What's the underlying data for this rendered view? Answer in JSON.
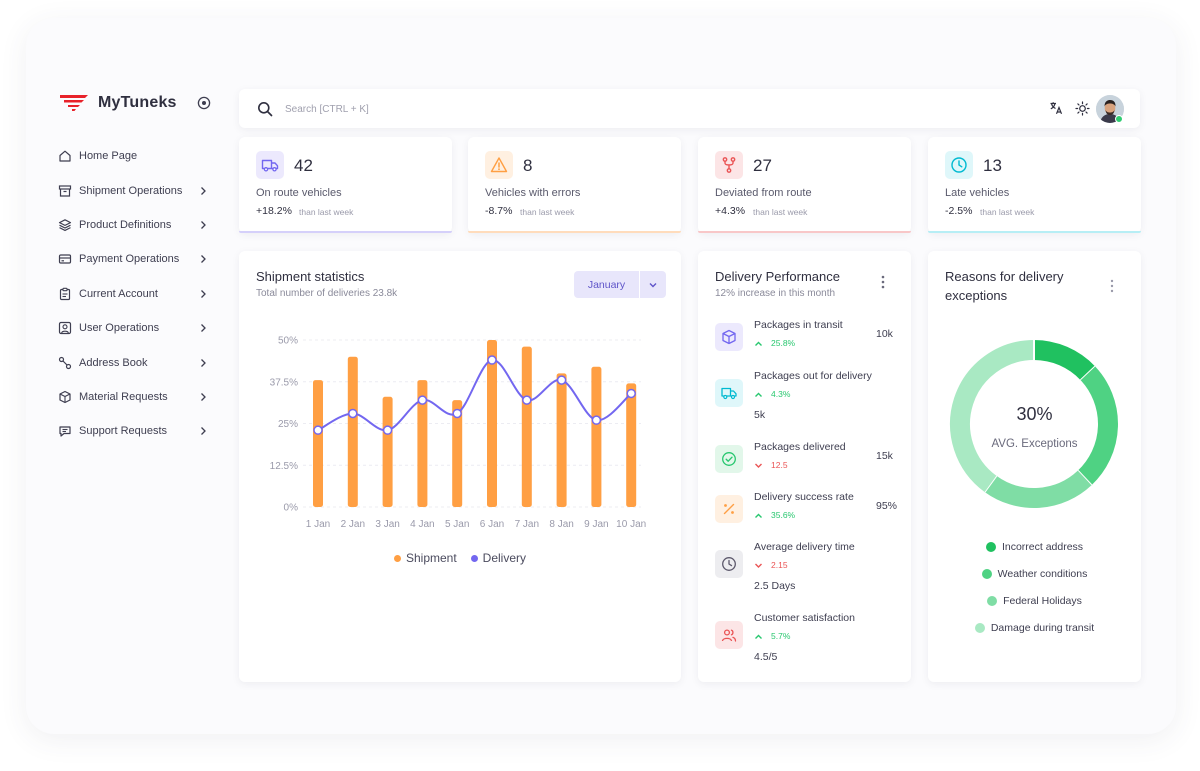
{
  "brand": {
    "name": "MyTuneks"
  },
  "sidebar": {
    "items": [
      {
        "label": "Home Page",
        "icon": "home-icon",
        "chevron": false
      },
      {
        "label": "Shipment Operations",
        "icon": "archive-box-icon",
        "chevron": true
      },
      {
        "label": "Product Definitions",
        "icon": "layers-icon",
        "chevron": true
      },
      {
        "label": "Payment Operations",
        "icon": "credit-card-icon",
        "chevron": true
      },
      {
        "label": "Current Account",
        "icon": "clipboard-icon",
        "chevron": true
      },
      {
        "label": "User Operations",
        "icon": "user-square-icon",
        "chevron": true
      },
      {
        "label": "Address Book",
        "icon": "route-icon",
        "chevron": true
      },
      {
        "label": "Material Requests",
        "icon": "package-icon",
        "chevron": true
      },
      {
        "label": "Support Requests",
        "icon": "chat-bubble-icon",
        "chevron": true
      }
    ]
  },
  "search": {
    "placeholder": "Search [CTRL + K]"
  },
  "stats": [
    {
      "value": "42",
      "label": "On route vehicles",
      "change": "+18.2%",
      "compare": "than last week",
      "color": "#7367f0"
    },
    {
      "value": "8",
      "label": "Vehicles with errors",
      "change": "-8.7%",
      "compare": "than last week",
      "color": "#ff9f43"
    },
    {
      "value": "27",
      "label": "Deviated from route",
      "change": "+4.3%",
      "compare": "than last week",
      "color": "#ea5455"
    },
    {
      "value": "13",
      "label": "Late vehicles",
      "change": "-2.5%",
      "compare": "than last week",
      "color": "#00bad1"
    }
  ],
  "shipment": {
    "title": "Shipment statistics",
    "subtitle": "Total number of deliveries 23.8k",
    "month": "January"
  },
  "chart_data": {
    "type": "bar",
    "categories": [
      "1 Jan",
      "2 Jan",
      "3 Jan",
      "4 Jan",
      "5 Jan",
      "6 Jan",
      "7 Jan",
      "8 Jan",
      "9 Jan",
      "10 Jan"
    ],
    "series": [
      {
        "name": "Shipment",
        "type": "bar",
        "color": "#ff9f43",
        "values": [
          38,
          45,
          33,
          38,
          32,
          50,
          48,
          40,
          42,
          37
        ]
      },
      {
        "name": "Delivery",
        "type": "line",
        "color": "#7367f0",
        "values": [
          23,
          28,
          23,
          32,
          28,
          44,
          32,
          38,
          26,
          34
        ]
      }
    ],
    "yticks": [
      "0%",
      "12.5%",
      "25%",
      "37.5%",
      "50%"
    ],
    "ylim": [
      0,
      50
    ],
    "grid": true,
    "legend": "bottom-center"
  },
  "performance": {
    "title": "Delivery Performance",
    "subtitle": "12% increase in this month",
    "items": [
      {
        "label": "Packages in transit",
        "change": "25.8%",
        "direction": "up",
        "value": "10k",
        "value_inline": true,
        "icon": "cube-icon",
        "color": "#7367f0",
        "bg": "#ece9fd"
      },
      {
        "label": "Packages out for delivery",
        "change": "4.3%",
        "direction": "up",
        "value": "5k",
        "value_inline": false,
        "icon": "truck-icon",
        "color": "#00bad1",
        "bg": "#dff7fa"
      },
      {
        "label": "Packages delivered",
        "change": "12.5",
        "direction": "down",
        "value": "15k",
        "value_inline": true,
        "icon": "check-circle-icon",
        "color": "#28c76f",
        "bg": "#e2f7ea"
      },
      {
        "label": "Delivery success rate",
        "change": "35.6%",
        "direction": "up",
        "value": "95%",
        "value_inline": true,
        "icon": "percent-icon",
        "color": "#ff9f43",
        "bg": "#fff0e1"
      },
      {
        "label": "Average delivery time",
        "change": "2.15",
        "direction": "down",
        "value": "2.5 Days",
        "value_inline": false,
        "icon": "clock-icon",
        "color": "#5d596c",
        "bg": "#ededf0"
      },
      {
        "label": "Customer satisfaction",
        "change": "5.7%",
        "direction": "up",
        "value": "4.5/5",
        "value_inline": false,
        "icon": "users-icon",
        "color": "#ea5455",
        "bg": "#fce5e6"
      }
    ]
  },
  "exceptions": {
    "title_line1": "Reasons for delivery",
    "title_line2": "exceptions",
    "center_value": "30%",
    "center_label": "AVG. Exceptions",
    "segments": [
      {
        "label": "Incorrect address",
        "value": 13,
        "color": "#20c160"
      },
      {
        "label": "Weather conditions",
        "value": 25,
        "color": "#4fd283"
      },
      {
        "label": "Federal Holidays",
        "value": 22,
        "color": "#7fdda5"
      },
      {
        "label": "Damage during transit",
        "value": 40,
        "color": "#a9e9c3"
      }
    ]
  },
  "colors": {
    "accent": "#7367f0",
    "up": "#28c76f",
    "down": "#ea5455"
  }
}
